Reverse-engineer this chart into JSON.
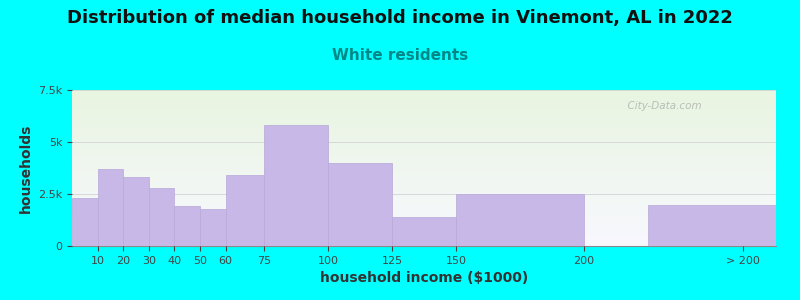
{
  "title": "Distribution of median household income in Vinemont, AL in 2022",
  "subtitle": "White residents",
  "xlabel": "household income ($1000)",
  "ylabel": "households",
  "bar_labels": [
    "10",
    "20",
    "30",
    "40",
    "50",
    "60",
    "75",
    "100",
    "125",
    "150",
    "200",
    "> 200"
  ],
  "bar_values": [
    2300,
    3700,
    3300,
    2800,
    1900,
    1800,
    3400,
    5800,
    4000,
    1400,
    2500,
    1950
  ],
  "bar_color": "#c8b8e8",
  "bar_edgecolor": "#b8a8d8",
  "bg_color": "#00ffff",
  "plot_bg_top_left": "#e8f5e0",
  "plot_bg_bottom_right": "#f8f8ff",
  "ylim": [
    0,
    7500
  ],
  "yticks": [
    0,
    2500,
    5000,
    7500
  ],
  "ytick_labels": [
    "0",
    "2.5k",
    "5k",
    "7.5k"
  ],
  "title_fontsize": 13,
  "subtitle_fontsize": 11,
  "subtitle_color": "#008888",
  "axis_label_fontsize": 10,
  "tick_fontsize": 8,
  "watermark_text": "  City-Data.com"
}
